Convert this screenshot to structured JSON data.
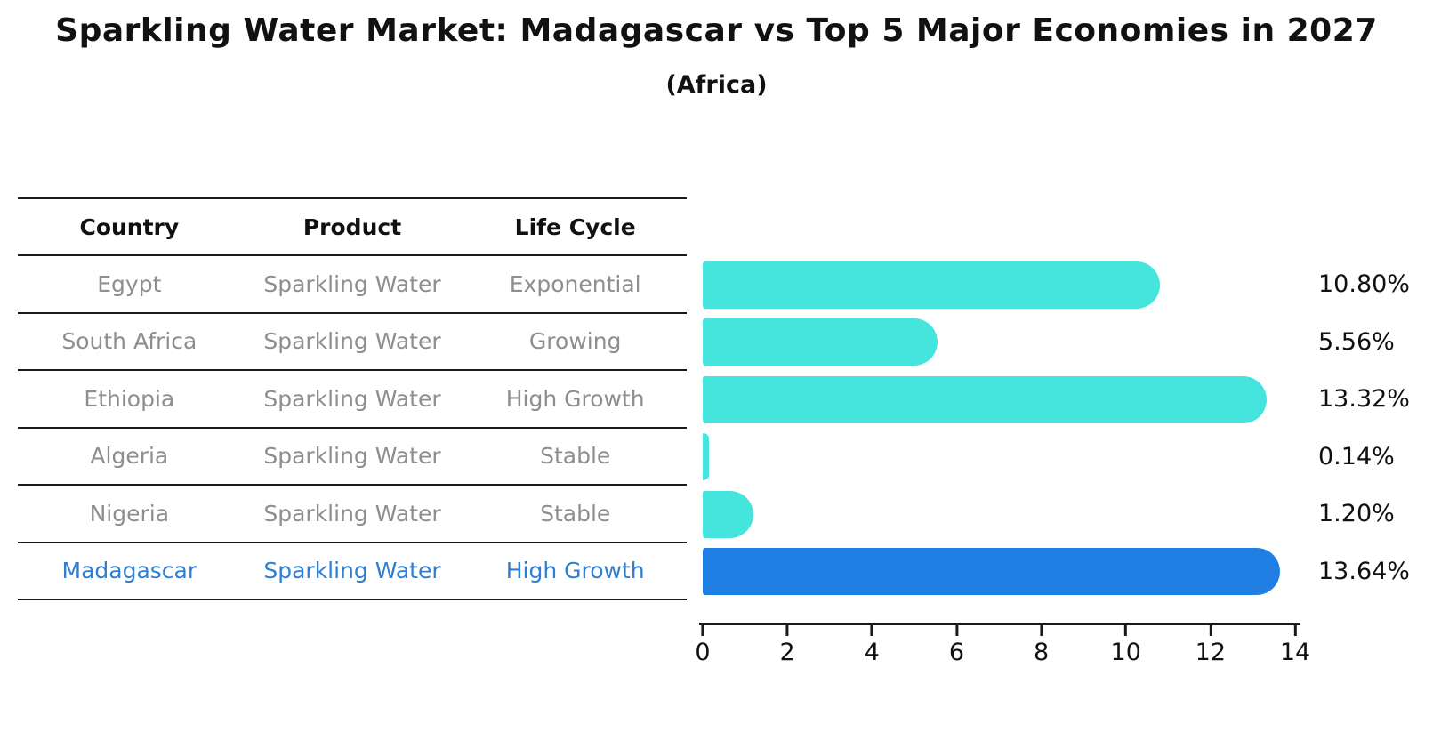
{
  "title": "Sparkling Water Market: Madagascar vs Top 5 Major Economies in 2027",
  "subtitle": "(Africa)",
  "table": {
    "headers": [
      "Country",
      "Product",
      "Life Cycle"
    ],
    "rows": [
      {
        "country": "Egypt",
        "product": "Sparkling Water",
        "life_cycle": "Exponential",
        "value_label": "10.80%",
        "highlight": false
      },
      {
        "country": "South Africa",
        "product": "Sparkling Water",
        "life_cycle": "Growing",
        "value_label": "5.56%",
        "highlight": false
      },
      {
        "country": "Ethiopia",
        "product": "Sparkling Water",
        "life_cycle": "High Growth",
        "value_label": "13.32%",
        "highlight": false
      },
      {
        "country": "Algeria",
        "product": "Sparkling Water",
        "life_cycle": "Stable",
        "value_label": "0.14%",
        "highlight": false
      },
      {
        "country": "Nigeria",
        "product": "Sparkling Water",
        "life_cycle": "Stable",
        "value_label": "1.20%",
        "highlight": false
      },
      {
        "country": "Madagascar",
        "product": "Sparkling Water",
        "life_cycle": "High Growth",
        "value_label": "13.64%",
        "highlight": true
      }
    ]
  },
  "chart_data": {
    "type": "bar",
    "orientation": "horizontal",
    "title": "Sparkling Water Market: Madagascar vs Top 5 Major Economies in 2027",
    "subtitle": "(Africa)",
    "categories": [
      "Egypt",
      "South Africa",
      "Ethiopia",
      "Algeria",
      "Nigeria",
      "Madagascar"
    ],
    "values": [
      10.8,
      5.56,
      13.32,
      0.14,
      1.2,
      13.64
    ],
    "value_labels": [
      "10.80%",
      "5.56%",
      "13.32%",
      "0.14%",
      "1.20%",
      "13.64%"
    ],
    "xlabel": "",
    "ylabel": "",
    "xlim": [
      0,
      14
    ],
    "x_ticks": [
      0,
      2,
      4,
      6,
      8,
      10,
      12,
      14
    ],
    "grid": false,
    "legend": false,
    "highlight_index": 5,
    "bar_color": "#45e5de",
    "highlight_color": "#1f7fe3"
  },
  "colors": {
    "bar": "#45e5de",
    "highlight_bar": "#1f7fe3",
    "highlight_text": "#2e7fd4",
    "table_text": "#8e8e8e",
    "heading_text": "#111111",
    "line": "#1a1a1a"
  }
}
